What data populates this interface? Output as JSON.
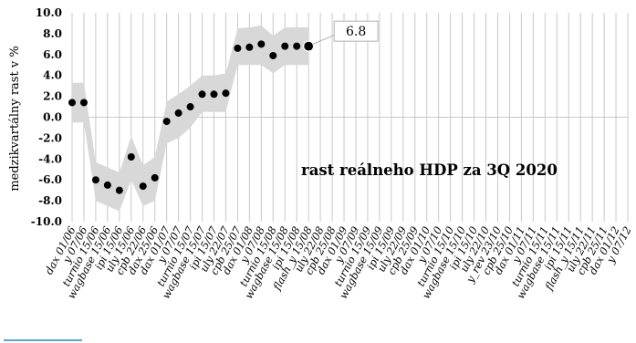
{
  "chart_data": {
    "type": "scatter",
    "ylabel": "medzikvartálny rast v %",
    "ylim": [
      -10,
      10
    ],
    "yticks": [
      "-10.0",
      "-8.0",
      "-6.0",
      "-4.0",
      "-2.0",
      "0.0",
      "2.0",
      "4.0",
      "6.0",
      "8.0",
      "10.0"
    ],
    "ytick_values": [
      -10,
      -8,
      -6,
      -4,
      -2,
      0,
      2,
      4,
      6,
      8,
      10
    ],
    "grid": "vertical",
    "categories": [
      "dax 01/06",
      "y 07/06",
      "turnio 15/06",
      "wagbase 15/06",
      "ipi 15/06",
      "uly 15/06",
      "cpb 22/06",
      "dax 25/06",
      "dax 01/07",
      "y 07/07",
      "turnio 15/07",
      "wagbase 15/07",
      "ipi 15/07",
      "uly 22/07",
      "cpb 25/07",
      "dax 01/08",
      "y 07/08",
      "turnio 15/08",
      "wagbase 15/08",
      "ipi 15/08",
      "flash_y 15/08",
      "uly 22/08",
      "cpb 25/08",
      "dax 01/09",
      "y 07/09",
      "turnio 15/09",
      "wagbase 15/09",
      "ipi 15/09",
      "uly 22/09",
      "cpb 25/09",
      "dax 01/10",
      "y 07/10",
      "turnio 15/10",
      "wagbase 15/10",
      "ipi 15/10",
      "uly 22/10",
      "y_rev 23/10",
      "cpb 25/10",
      "dax 01/11",
      "y 07/11",
      "turnio 15/11",
      "wagbase 15/11",
      "ipi 15/11",
      "flash_y 15/11",
      "uly 22/11",
      "cpb 25/11",
      "dax 01/12",
      "y 07/12"
    ],
    "series": [
      {
        "values": [
          1.4,
          1.4,
          -6.0,
          -6.5,
          -7.0,
          -3.8,
          -6.6,
          -5.8,
          -0.4,
          0.4,
          1.0,
          2.2,
          2.2,
          2.3,
          6.6,
          6.7,
          7.0,
          5.9,
          6.8,
          6.8,
          6.8
        ]
      }
    ],
    "band_lower": [
      -0.5,
      -0.5,
      -8.0,
      -8.5,
      -9.0,
      -6.0,
      -8.5,
      -8.0,
      -2.5,
      -2.0,
      -1.0,
      0.5,
      0.5,
      0.5,
      5.0,
      5.0,
      5.0,
      4.2,
      5.0,
      5.0,
      5.0
    ],
    "band_upper": [
      3.3,
      3.3,
      -4.3,
      -4.8,
      -5.3,
      -1.8,
      -4.6,
      -3.8,
      1.5,
      2.2,
      3.0,
      4.0,
      4.0,
      4.2,
      8.5,
      8.6,
      8.8,
      7.8,
      8.6,
      8.6,
      8.6
    ],
    "annotation": "rast reálneho HDP za 3Q 2020",
    "callout": "6.8",
    "colors": {
      "band": "#d8d8d8",
      "points": "#000000",
      "grid": "#c8c8c8",
      "callout_border": "#b0b0b0"
    }
  }
}
